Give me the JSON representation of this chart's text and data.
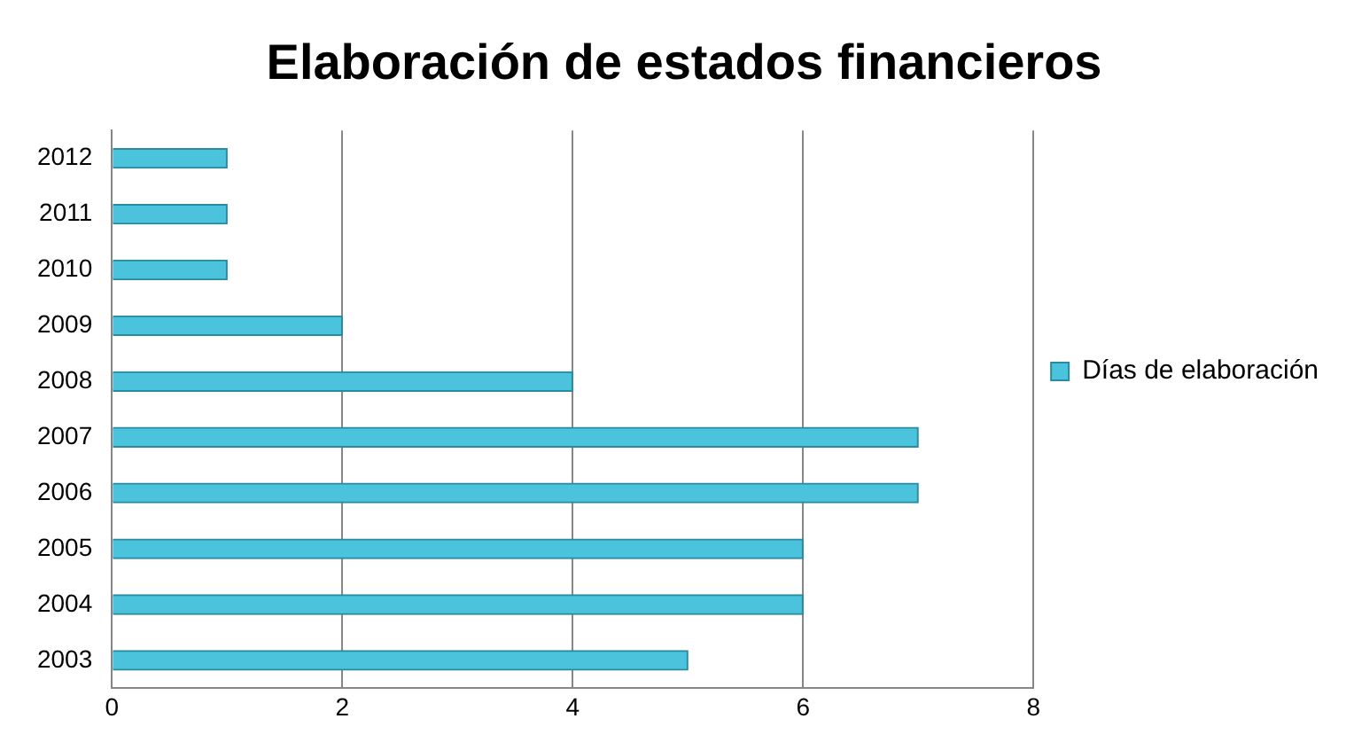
{
  "chart_data": {
    "type": "bar",
    "title": "Elaboración de estados financieros",
    "orientation": "horizontal",
    "categories": [
      "2012",
      "2011",
      "2010",
      "2009",
      "2008",
      "2007",
      "2006",
      "2005",
      "2004",
      "2003"
    ],
    "series": [
      {
        "name": "Días de elaboración",
        "color": "#4bc3dc",
        "values": [
          1,
          1,
          1,
          2,
          4,
          7,
          7,
          6,
          6,
          5
        ]
      }
    ],
    "xlim": [
      0,
      8
    ],
    "xticks": [
      0,
      2,
      4,
      6,
      8
    ],
    "grid": "x",
    "legend": "right"
  }
}
